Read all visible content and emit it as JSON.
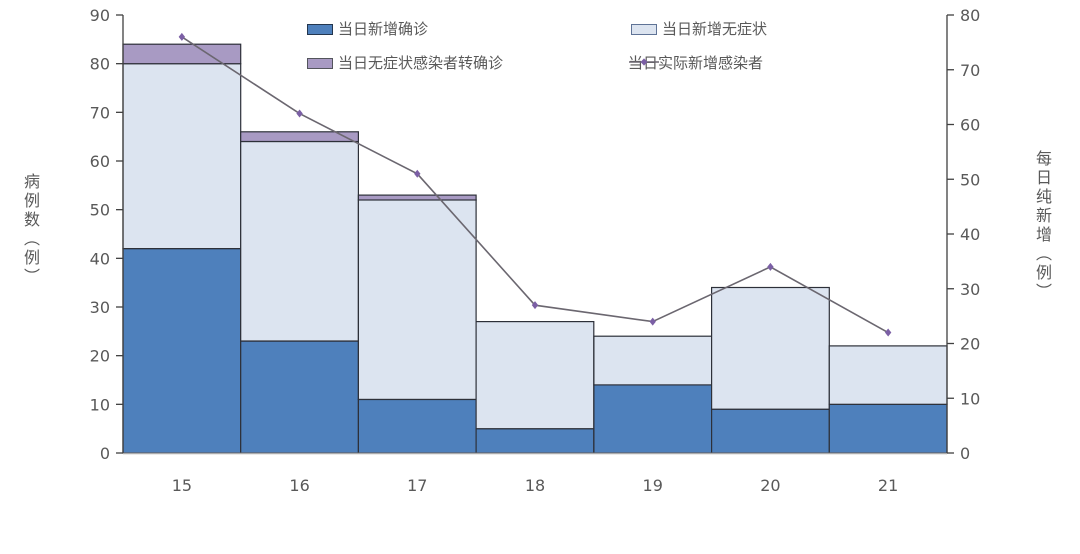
{
  "chart_data": {
    "type": "bar",
    "subtype": "stacked-bar-with-line-combo",
    "categories": [
      "15",
      "16",
      "17",
      "18",
      "19",
      "20",
      "21"
    ],
    "series": [
      {
        "name": "当日新增确诊",
        "type": "bar",
        "axis": "left",
        "color": "#4E80BC",
        "border": "#24364E",
        "values": [
          42,
          23,
          11,
          5,
          14,
          9,
          10
        ]
      },
      {
        "name": "当日新增无症状",
        "type": "bar",
        "axis": "left",
        "color": "#DCE4F0",
        "border": "#5F7396",
        "values": [
          38,
          41,
          41,
          22,
          10,
          25,
          12
        ]
      },
      {
        "name": "当日无症状感染者转确诊",
        "type": "bar",
        "axis": "left",
        "color": "#A89AC3",
        "border": "#53555C",
        "values": [
          4,
          2,
          1,
          0,
          0,
          0,
          0
        ]
      },
      {
        "name": "当日实际新增感染者",
        "type": "line",
        "axis": "right",
        "color": "#6B6770",
        "marker_color": "#7B5FA5",
        "values": [
          76,
          62,
          51,
          27,
          24,
          34,
          22
        ]
      }
    ],
    "stack_totals": [
      84,
      66,
      53,
      27,
      24,
      34,
      22
    ],
    "left_axis": {
      "title": "病例数（例）",
      "min": 0,
      "max": 90,
      "tick_step": 10,
      "ticks": [
        0,
        10,
        20,
        30,
        40,
        50,
        60,
        70,
        80,
        90
      ]
    },
    "right_axis": {
      "title": "每日纯新增（例）",
      "min": 0,
      "max": 80,
      "tick_step": 10,
      "ticks": [
        0,
        10,
        20,
        30,
        40,
        50,
        60,
        70,
        80
      ]
    },
    "grid": false,
    "legend_position": "top-inside",
    "colors": {
      "bar_border": "#2D3039",
      "axis_line": "#404040",
      "baseline": "#ABABAB",
      "tick_label": "#595959"
    }
  }
}
